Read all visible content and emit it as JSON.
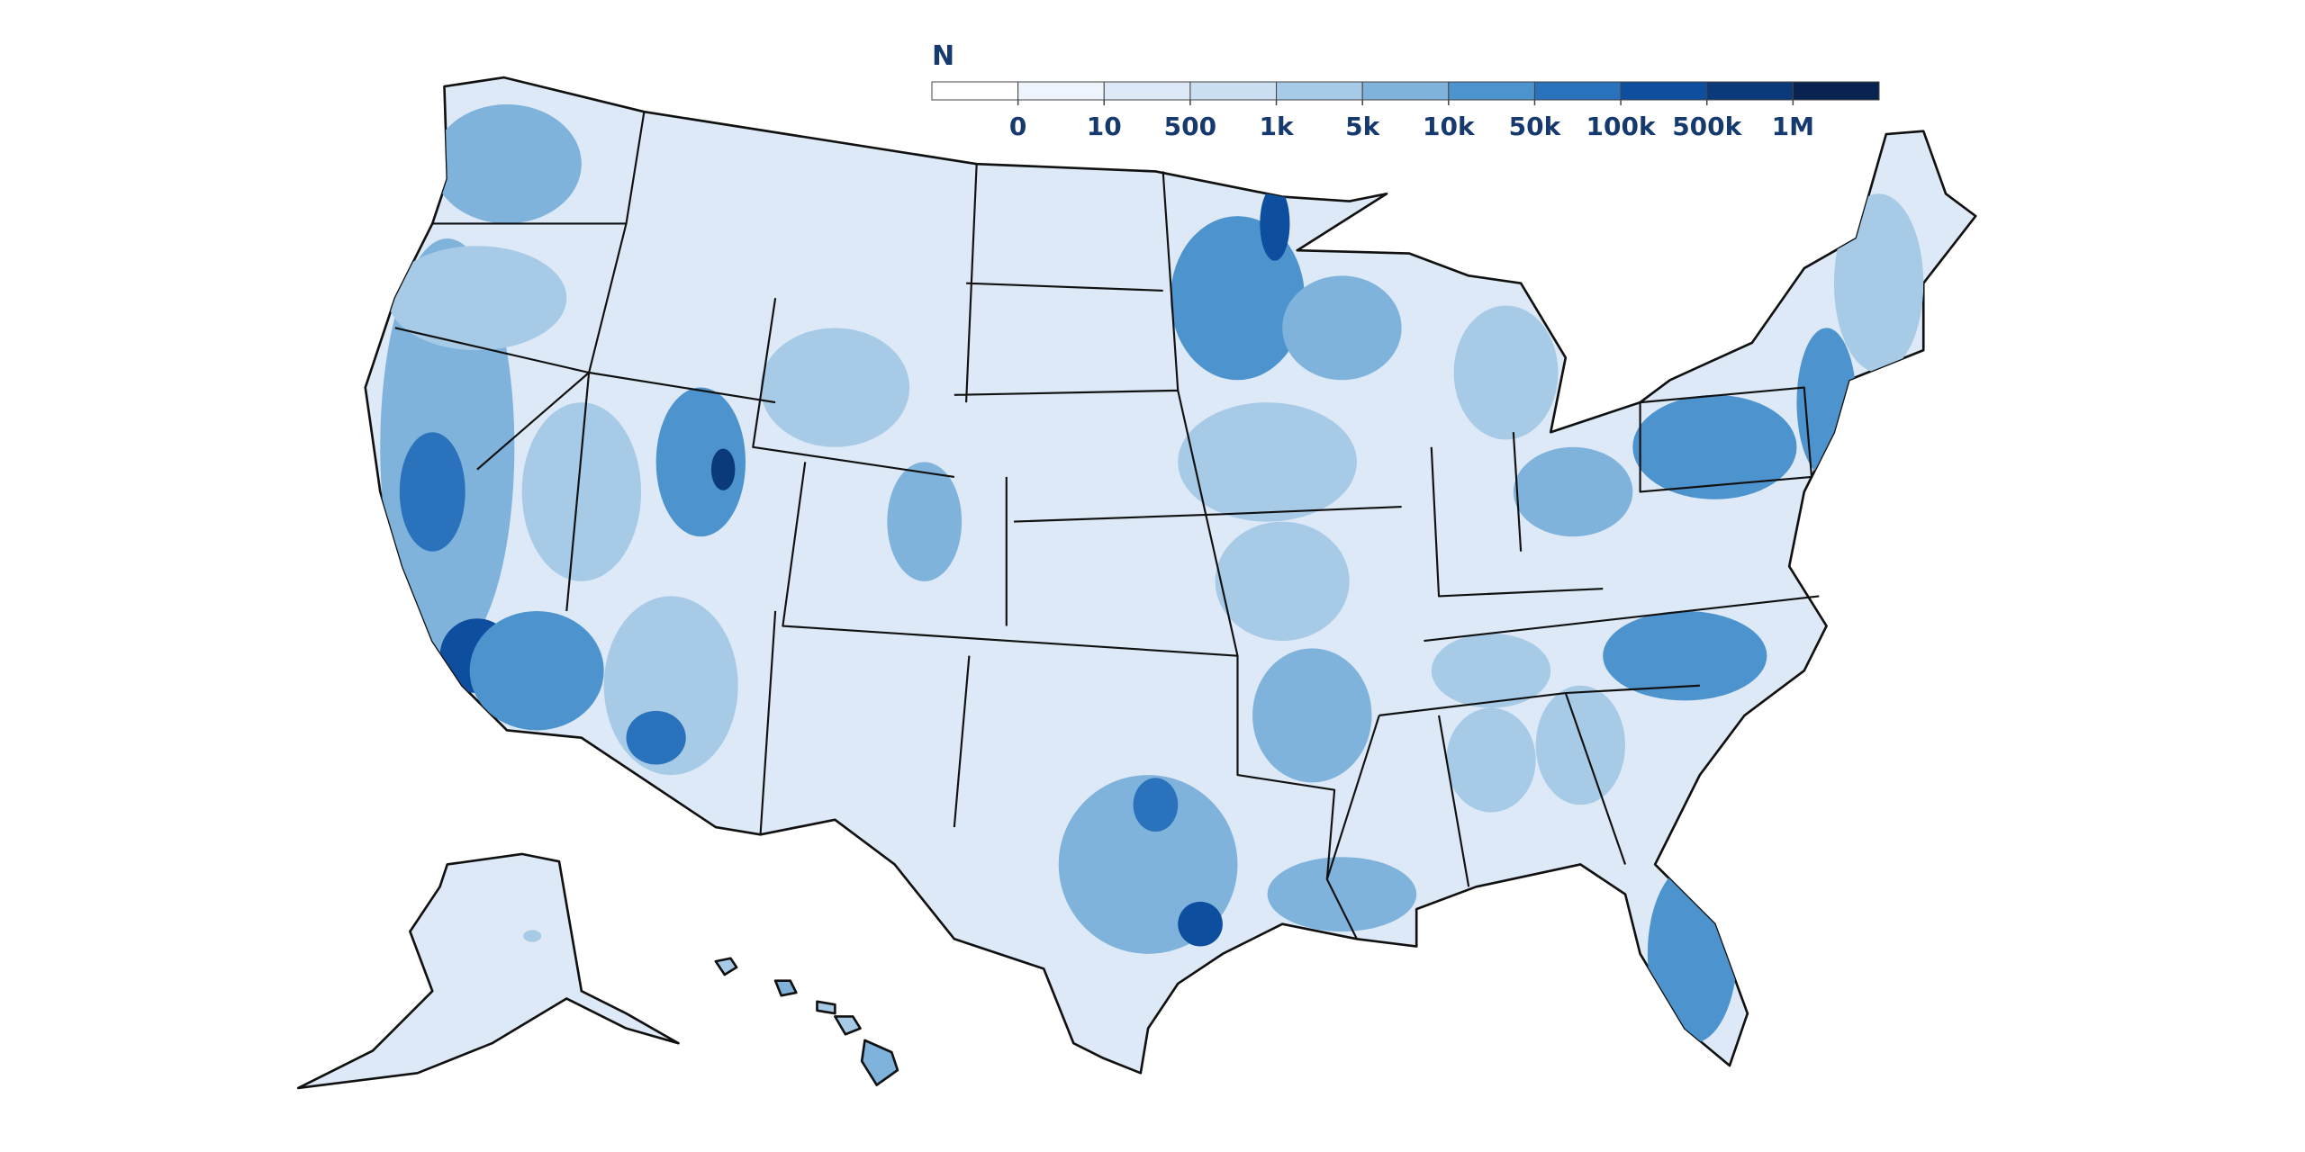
{
  "legend": {
    "title": "N",
    "ticks": [
      "0",
      "10",
      "500",
      "1k",
      "5k",
      "10k",
      "50k",
      "100k",
      "500k",
      "1M"
    ],
    "colors": [
      "#ffffff",
      "#eef4fb",
      "#dde9f6",
      "#cadff2",
      "#a7cbe6",
      "#7fb3dc",
      "#4d93cd",
      "#2a72bb",
      "#0d4f9e",
      "#0a3a7a",
      "#08234f"
    ]
  }
}
